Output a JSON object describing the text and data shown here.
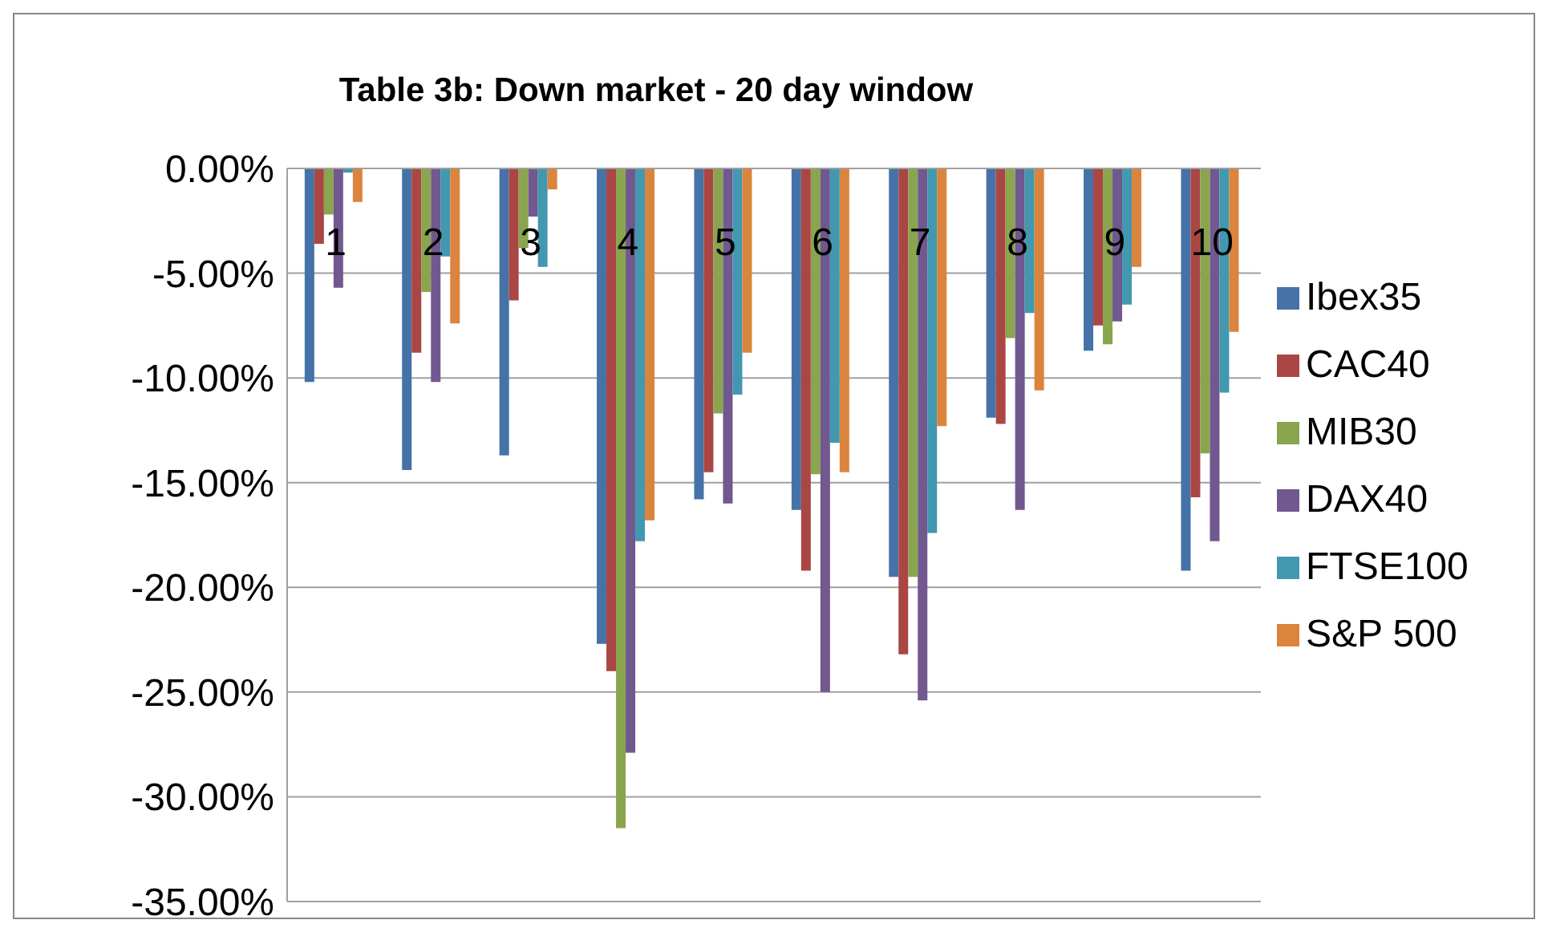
{
  "chart_data": {
    "type": "bar",
    "title": "Table 3b: Down market - 20 day window",
    "categories": [
      "1",
      "2",
      "3",
      "4",
      "5",
      "6",
      "7",
      "8",
      "9",
      "10"
    ],
    "series": [
      {
        "name": "Ibex35",
        "color": "#4572a7",
        "values": [
          -10.2,
          -14.4,
          -13.7,
          -22.7,
          -15.8,
          -16.3,
          -19.5,
          -11.9,
          -8.7,
          -19.2
        ]
      },
      {
        "name": "CAC40",
        "color": "#aa4643",
        "values": [
          -3.6,
          -8.8,
          -6.3,
          -24.0,
          -14.5,
          -19.2,
          -23.2,
          -12.2,
          -7.5,
          -15.7
        ]
      },
      {
        "name": "MIB30",
        "color": "#89a54e",
        "values": [
          -2.2,
          -5.9,
          -3.8,
          -31.5,
          -11.7,
          -14.6,
          -19.5,
          -8.1,
          -8.4,
          -13.6
        ]
      },
      {
        "name": "DAX40",
        "color": "#71588f",
        "values": [
          -5.7,
          -10.2,
          -2.3,
          -27.9,
          -16.0,
          -25.0,
          -25.4,
          -16.3,
          -7.3,
          -17.8
        ]
      },
      {
        "name": "FTSE100",
        "color": "#4198af",
        "values": [
          -0.2,
          -4.2,
          -4.7,
          -17.8,
          -10.8,
          -13.1,
          -17.4,
          -6.9,
          -6.5,
          -10.7
        ]
      },
      {
        "name": "S&P 500",
        "color": "#db843d",
        "values": [
          -1.6,
          -7.4,
          -1.0,
          -16.8,
          -8.8,
          -14.5,
          -12.3,
          -10.6,
          -4.7,
          -7.8
        ]
      }
    ],
    "ylim": [
      -35,
      0
    ],
    "yticks": [
      {
        "value": -35,
        "label": "-35.00%"
      },
      {
        "value": -30,
        "label": "-30.00%"
      },
      {
        "value": -25,
        "label": "-25.00%"
      },
      {
        "value": -20,
        "label": "-20.00%"
      },
      {
        "value": -15,
        "label": "-15.00%"
      },
      {
        "value": -10,
        "label": "-10.00%"
      },
      {
        "value": -5,
        "label": "-5.00%"
      },
      {
        "value": 0,
        "label": "0.00%"
      }
    ],
    "grid": "y",
    "legend": "right"
  }
}
